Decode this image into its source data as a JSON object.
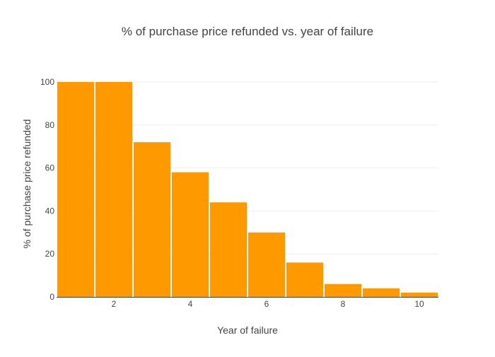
{
  "chart_data": {
    "type": "bar",
    "title": "% of purchase price refunded vs. year of failure",
    "xlabel": "Year of failure",
    "ylabel": "% of purchase price refunded",
    "x": [
      1,
      2,
      3,
      4,
      5,
      6,
      7,
      8,
      9,
      10
    ],
    "values": [
      100,
      100,
      72,
      58,
      44,
      30,
      16,
      6,
      4,
      2
    ],
    "xlim": [
      0.5,
      10.5
    ],
    "ylim": [
      0,
      100
    ],
    "xticks": [
      2,
      4,
      6,
      8,
      10
    ],
    "yticks": [
      0,
      20,
      40,
      60,
      80,
      100
    ],
    "grid": true,
    "legend": "none",
    "bar_color": "#ff9900",
    "grid_color": "#eeeeee",
    "text_color": "#444444"
  }
}
